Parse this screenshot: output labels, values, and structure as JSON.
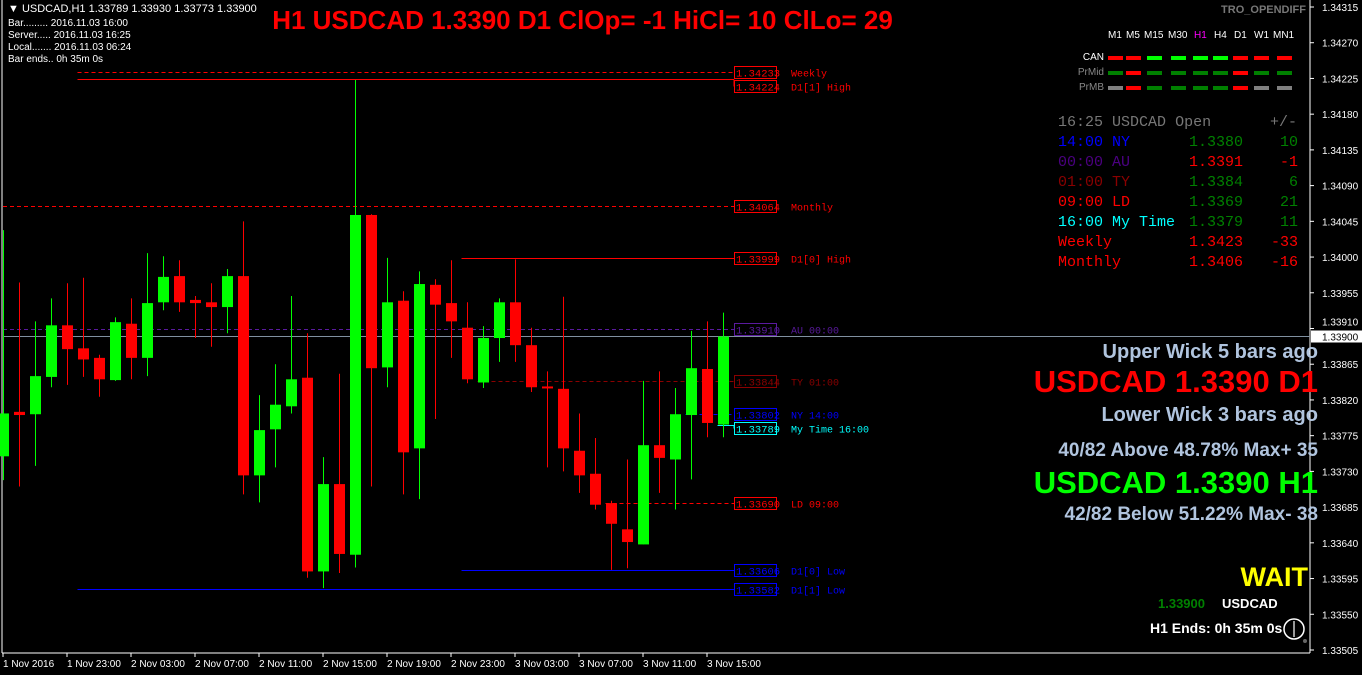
{
  "header": {
    "symbol_line": "USDCAD,H1  1.33789 1.33930 1.33773 1.33900",
    "bar": "Bar......... 2016.11.03 16:00",
    "server": "Server..... 2016.11.03 16:25",
    "local": "Local....... 2016.11.03 06:24",
    "bar_ends": "Bar ends.. 0h 35m 0s"
  },
  "title": "H1 USDCAD 1.3390 D1 ClOp= -1 HiCl= 10 ClLo= 29",
  "indicator_name": "TRO_OPENDIFF",
  "timeframes": {
    "labels": [
      "M1",
      "M5",
      "M15",
      "M30",
      "H1",
      "H4",
      "D1",
      "W1",
      "MN1"
    ],
    "active": "H1",
    "rows": [
      {
        "label": "CAN",
        "colors": [
          "#ff0000",
          "#ff0000",
          "#00ff00",
          "#00ff00",
          "#00ff00",
          "#00ff00",
          "#ff0000",
          "#ff0000",
          "#ff0000"
        ]
      },
      {
        "label": "PrMid",
        "colors": [
          "#008000",
          "#ff0000",
          "#008000",
          "#008000",
          "#008000",
          "#008000",
          "#ff0000",
          "#008000",
          "#008000"
        ]
      },
      {
        "label": "PrMB",
        "colors": [
          "#808080",
          "#ff0000",
          "#008000",
          "#008000",
          "#008000",
          "#008000",
          "#ff0000",
          "#808080",
          "#808080"
        ]
      }
    ]
  },
  "session_table": {
    "header": [
      "16:25",
      "USDCAD",
      "Open",
      "+/-"
    ],
    "rows": [
      {
        "time": "14:00",
        "name": "NY",
        "open": "1.3380",
        "diff": "10",
        "color": "#0000ff",
        "open_color": "#008000",
        "diff_color": "#008000"
      },
      {
        "time": "00:00",
        "name": "AU",
        "open": "1.3391",
        "diff": "-1",
        "color": "#4b0082",
        "open_color": "#ff0000",
        "diff_color": "#ff0000"
      },
      {
        "time": "01:00",
        "name": "TY",
        "open": "1.3384",
        "diff": "6",
        "color": "#8b0000",
        "open_color": "#008000",
        "diff_color": "#008000"
      },
      {
        "time": "09:00",
        "name": "LD",
        "open": "1.3369",
        "diff": "21",
        "color": "#ff0000",
        "open_color": "#008000",
        "diff_color": "#008000"
      },
      {
        "time": "16:00",
        "name": "My Time",
        "open": "1.3379",
        "diff": "11",
        "color": "#00ffff",
        "open_color": "#008000",
        "diff_color": "#008000"
      },
      {
        "time": "",
        "name": "Weekly",
        "open": "1.3423",
        "diff": "-33",
        "color": "#ff0000",
        "open_color": "#ff0000",
        "diff_color": "#ff0000"
      },
      {
        "time": "",
        "name": "Monthly",
        "open": "1.3406",
        "diff": "-16",
        "color": "#ff0000",
        "open_color": "#ff0000",
        "diff_color": "#ff0000"
      }
    ]
  },
  "signals": {
    "upper_wick": "Upper Wick 5 bars ago",
    "d1_line": "USDCAD 1.3390 D1",
    "lower_wick": "Lower Wick 3 bars ago",
    "above": "40/82 Above 48.78% Max+ 35",
    "h1_line": "USDCAD 1.3390 H1",
    "below": "42/82 Below 51.22% Max- 38",
    "status": "WAIT",
    "price": "1.33900",
    "symbol": "USDCAD",
    "ends": "H1 Ends: 0h 35m 0s"
  },
  "colors": {
    "bull": "#00ff00",
    "bear": "#ff0000",
    "price_line": "#8090a0",
    "axis_text": "#ffffff"
  },
  "chart_data": {
    "type": "candlestick",
    "ylim": [
      1.33505,
      1.34315
    ],
    "yticks": [
      "1.34315",
      "1.34270",
      "1.34225",
      "1.34180",
      "1.34135",
      "1.34090",
      "1.34045",
      "1.34000",
      "1.33955",
      "1.33910",
      "1.33865",
      "1.33820",
      "1.33775",
      "1.33730",
      "1.33685",
      "1.33640",
      "1.33595",
      "1.33550",
      "1.33505"
    ],
    "current_price": "1.33900",
    "xticks": [
      {
        "bar": 0,
        "label": "1 Nov 2016"
      },
      {
        "bar": 4,
        "label": "1 Nov 23:00"
      },
      {
        "bar": 8,
        "label": "2 Nov 03:00"
      },
      {
        "bar": 12,
        "label": "2 Nov 07:00"
      },
      {
        "bar": 16,
        "label": "2 Nov 11:00"
      },
      {
        "bar": 20,
        "label": "2 Nov 15:00"
      },
      {
        "bar": 24,
        "label": "2 Nov 19:00"
      },
      {
        "bar": 28,
        "label": "2 Nov 23:00"
      },
      {
        "bar": 32,
        "label": "3 Nov 03:00"
      },
      {
        "bar": 36,
        "label": "3 Nov 07:00"
      },
      {
        "bar": 40,
        "label": "3 Nov 11:00"
      },
      {
        "bar": 44,
        "label": "3 Nov 15:00"
      }
    ],
    "ohlc": [
      [
        1.33749,
        1.34034,
        1.33719,
        1.33803
      ],
      [
        1.33805,
        1.33968,
        1.33711,
        1.33801
      ],
      [
        1.33802,
        1.33919,
        1.33737,
        1.3385
      ],
      [
        1.33849,
        1.33948,
        1.33836,
        1.33914
      ],
      [
        1.33914,
        1.33967,
        1.33839,
        1.33884
      ],
      [
        1.33885,
        1.33974,
        1.33849,
        1.33871
      ],
      [
        1.33873,
        1.33877,
        1.33824,
        1.33846
      ],
      [
        1.33845,
        1.33924,
        1.33844,
        1.33918
      ],
      [
        1.33916,
        1.33948,
        1.33846,
        1.33873
      ],
      [
        1.33873,
        1.34005,
        1.3385,
        1.33942
      ],
      [
        1.33943,
        1.34001,
        1.33933,
        1.33975
      ],
      [
        1.33976,
        1.33996,
        1.33931,
        1.33943
      ],
      [
        1.33946,
        1.33951,
        1.33898,
        1.33942
      ],
      [
        1.33943,
        1.33967,
        1.33887,
        1.33937
      ],
      [
        1.33937,
        1.33985,
        1.33904,
        1.33976
      ],
      [
        1.33976,
        1.34045,
        1.33701,
        1.33725
      ],
      [
        1.33725,
        1.33826,
        1.33691,
        1.33782
      ],
      [
        1.33783,
        1.33865,
        1.33735,
        1.33814
      ],
      [
        1.33812,
        1.33951,
        1.33803,
        1.33846
      ],
      [
        1.33848,
        1.33904,
        1.33596,
        1.33604
      ],
      [
        1.33604,
        1.33748,
        1.33583,
        1.33714
      ],
      [
        1.33714,
        1.33853,
        1.33602,
        1.33626
      ],
      [
        1.33625,
        1.34223,
        1.33609,
        1.34053
      ],
      [
        1.34053,
        1.34054,
        1.33711,
        1.3386
      ],
      [
        1.33861,
        1.33999,
        1.33836,
        1.33943
      ],
      [
        1.33945,
        1.33957,
        1.33701,
        1.33754
      ],
      [
        1.33759,
        1.33982,
        1.33695,
        1.33966
      ],
      [
        1.33965,
        1.33972,
        1.33796,
        1.3394
      ],
      [
        1.33942,
        1.33996,
        1.33873,
        1.33919
      ],
      [
        1.33911,
        1.33943,
        1.33841,
        1.33846
      ],
      [
        1.33842,
        1.33913,
        1.33835,
        1.33898
      ],
      [
        1.33898,
        1.33948,
        1.33868,
        1.33943
      ],
      [
        1.33943,
        1.33997,
        1.33868,
        1.33889
      ],
      [
        1.33889,
        1.33911,
        1.3383,
        1.33836
      ],
      [
        1.33837,
        1.33856,
        1.33735,
        1.33835
      ],
      [
        1.33834,
        1.3395,
        1.3373,
        1.33759
      ],
      [
        1.33756,
        1.33803,
        1.33703,
        1.33725
      ],
      [
        1.33727,
        1.33772,
        1.33682,
        1.33688
      ],
      [
        1.3369,
        1.33693,
        1.33606,
        1.33664
      ],
      [
        1.33657,
        1.33745,
        1.33608,
        1.33641
      ],
      [
        1.33638,
        1.33844,
        1.33638,
        1.33763
      ],
      [
        1.33763,
        1.33856,
        1.33703,
        1.33747
      ],
      [
        1.33745,
        1.33835,
        1.33682,
        1.33802
      ],
      [
        1.33801,
        1.33907,
        1.3372,
        1.3386
      ],
      [
        1.33859,
        1.33919,
        1.33773,
        1.33791
      ],
      [
        1.33789,
        1.3393,
        1.33773,
        1.339
      ]
    ],
    "levels": [
      {
        "price": 1.34233,
        "box": "1.34233",
        "label": "Weekly",
        "color": "#ff0000",
        "style": "dashed",
        "from_bar": 5
      },
      {
        "price": 1.34224,
        "box": "1.34224",
        "label": "D1[1] High",
        "color": "#ff0000",
        "style": "solid",
        "from_bar": 5
      },
      {
        "price": 1.34064,
        "box": "1.34064",
        "label": "Monthly",
        "color": "#ff0000",
        "style": "dashed",
        "from_bar": -1
      },
      {
        "price": 1.33999,
        "box": "1.33999",
        "label": "D1[0] High",
        "color": "#ff0000",
        "style": "solid",
        "from_bar": 29
      },
      {
        "price": 1.3391,
        "box": "1.33910",
        "label": "AU 00:00",
        "color": "#5a1a9e",
        "style": "dashed",
        "from_bar": -1
      },
      {
        "price": 1.33844,
        "box": "1.33844",
        "label": "TY 01:00",
        "color": "#8b0000",
        "style": "dashed",
        "from_bar": 30
      },
      {
        "price": 1.33802,
        "box": "1.33802",
        "label": "NY 14:00",
        "color": "#0000ff",
        "style": "dashed",
        "from_bar": 43
      },
      {
        "price": 1.33789,
        "box": "1.33789",
        "label": "My Time 16:00",
        "color": "#00ffff",
        "style": "solid",
        "from_bar": 45
      },
      {
        "price": 1.3369,
        "box": "1.33690",
        "label": "LD 09:00",
        "color": "#ff0000",
        "style": "dashed",
        "from_bar": 38
      },
      {
        "price": 1.33606,
        "box": "1.33606",
        "label": "D1[0] Low",
        "color": "#0000ff",
        "style": "solid",
        "from_bar": 29
      },
      {
        "price": 1.33582,
        "box": "1.33582",
        "label": "D1[1] Low",
        "color": "#0000ff",
        "style": "solid",
        "from_bar": 5
      }
    ]
  }
}
